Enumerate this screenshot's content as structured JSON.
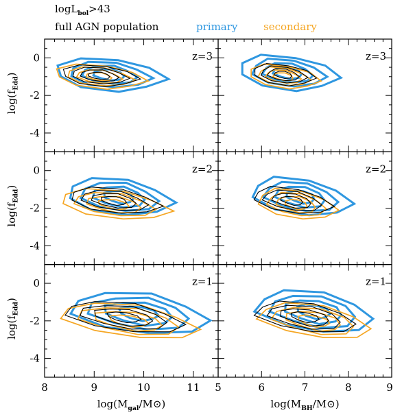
{
  "header": {
    "threshold_main": "logL",
    "threshold_sub": "bol",
    "threshold_tail": ">43",
    "full_label": "full AGN population",
    "primary_label": "primary",
    "secondary_label": "secondary"
  },
  "colors": {
    "full": "#000000",
    "primary": "#2f97e0",
    "secondary": "#f5a623"
  },
  "chart_data": {
    "type": "contour",
    "grid": {
      "rows": 3,
      "cols": 2
    },
    "ylabel": {
      "main": "log(f",
      "sub": "Edd",
      "tail": ")"
    },
    "ylim": [
      -5,
      1
    ],
    "yticks": [
      "0",
      "-2",
      "-4"
    ],
    "yticks_values": [
      0,
      -2,
      -4
    ],
    "columns": [
      {
        "xlabel": {
          "main": "log(M",
          "sub": "gal",
          "tail": "/M⊙)"
        },
        "xlim": [
          8,
          11.5
        ],
        "xticks": [
          "8",
          "9",
          "10",
          "11"
        ],
        "xticks_values": [
          8,
          9,
          10,
          11
        ]
      },
      {
        "xlabel": {
          "main": "log(M",
          "sub": "BH",
          "tail": "/M⊙)"
        },
        "xlim": [
          5,
          9
        ],
        "xticks": [
          "5",
          "6",
          "7",
          "8",
          "9"
        ],
        "xticks_values": [
          5,
          6,
          7,
          8,
          9
        ]
      }
    ],
    "row_labels": [
      "z=3",
      "z=2",
      "z=1"
    ],
    "panels": [
      {
        "row": 0,
        "col": 0,
        "redshift": "z=3",
        "populations": [
          {
            "name": "primary",
            "cx": 9.3,
            "cy": -0.9,
            "sx": 1.15,
            "sy": 0.85,
            "tilt": -0.18,
            "levels": 4
          },
          {
            "name": "secondary",
            "cx": 9.1,
            "cy": -1.0,
            "sx": 0.95,
            "sy": 0.62,
            "tilt": -0.22,
            "levels": 4
          },
          {
            "name": "full",
            "cx": 9.1,
            "cy": -0.95,
            "sx": 0.8,
            "sy": 0.55,
            "tilt": -0.2,
            "levels": 4
          }
        ]
      },
      {
        "row": 0,
        "col": 1,
        "redshift": "z=3",
        "populations": [
          {
            "name": "primary",
            "cx": 6.6,
            "cy": -0.8,
            "sx": 1.2,
            "sy": 0.9,
            "tilt": -0.2,
            "levels": 4
          },
          {
            "name": "secondary",
            "cx": 6.5,
            "cy": -1.0,
            "sx": 0.85,
            "sy": 0.6,
            "tilt": -0.25,
            "levels": 4
          },
          {
            "name": "full",
            "cx": 6.5,
            "cy": -0.9,
            "sx": 0.75,
            "sy": 0.55,
            "tilt": -0.22,
            "levels": 4
          }
        ]
      },
      {
        "row": 1,
        "col": 0,
        "redshift": "z=2",
        "populations": [
          {
            "name": "primary",
            "cx": 9.5,
            "cy": -1.4,
            "sx": 1.1,
            "sy": 0.95,
            "tilt": -0.25,
            "levels": 4
          },
          {
            "name": "secondary",
            "cx": 9.4,
            "cy": -1.8,
            "sx": 1.15,
            "sy": 0.75,
            "tilt": -0.28,
            "levels": 4
          },
          {
            "name": "full",
            "cx": 9.4,
            "cy": -1.6,
            "sx": 0.95,
            "sy": 0.65,
            "tilt": -0.28,
            "levels": 4
          }
        ]
      },
      {
        "row": 1,
        "col": 1,
        "redshift": "z=2",
        "populations": [
          {
            "name": "primary",
            "cx": 6.9,
            "cy": -1.4,
            "sx": 1.2,
            "sy": 0.95,
            "tilt": -0.28,
            "levels": 4
          },
          {
            "name": "secondary",
            "cx": 6.8,
            "cy": -1.8,
            "sx": 0.95,
            "sy": 0.75,
            "tilt": -0.3,
            "levels": 4
          },
          {
            "name": "full",
            "cx": 6.7,
            "cy": -1.6,
            "sx": 0.95,
            "sy": 0.65,
            "tilt": -0.3,
            "levels": 4
          }
        ]
      },
      {
        "row": 2,
        "col": 0,
        "redshift": "z=1",
        "populations": [
          {
            "name": "primary",
            "cx": 9.9,
            "cy": -1.6,
            "sx": 1.45,
            "sy": 1.05,
            "tilt": -0.25,
            "levels": 4
          },
          {
            "name": "secondary",
            "cx": 9.7,
            "cy": -2.0,
            "sx": 1.45,
            "sy": 0.85,
            "tilt": -0.3,
            "levels": 4
          },
          {
            "name": "full",
            "cx": 9.6,
            "cy": -1.8,
            "sx": 1.25,
            "sy": 0.75,
            "tilt": -0.3,
            "levels": 4
          }
        ]
      },
      {
        "row": 2,
        "col": 1,
        "redshift": "z=1",
        "populations": [
          {
            "name": "primary",
            "cx": 7.2,
            "cy": -1.5,
            "sx": 1.4,
            "sy": 1.05,
            "tilt": -0.27,
            "levels": 4
          },
          {
            "name": "secondary",
            "cx": 7.2,
            "cy": -2.0,
            "sx": 1.35,
            "sy": 0.85,
            "tilt": -0.3,
            "levels": 4
          },
          {
            "name": "full",
            "cx": 7.0,
            "cy": -1.8,
            "sx": 1.2,
            "sy": 0.75,
            "tilt": -0.3,
            "levels": 4
          }
        ]
      }
    ]
  }
}
